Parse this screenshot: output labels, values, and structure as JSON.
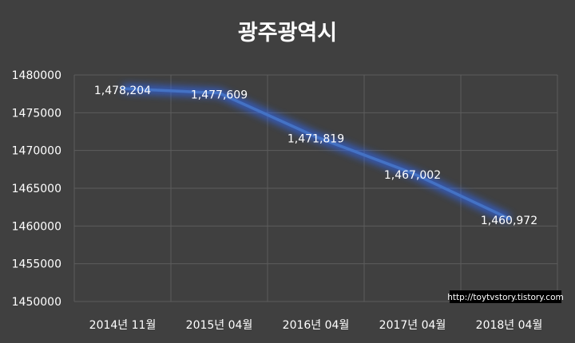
{
  "chart_data": {
    "type": "line",
    "title": "광주광역시",
    "categories": [
      "2014년 11월",
      "2015년 04월",
      "2016년 04월",
      "2017년 04월",
      "2018년 04월"
    ],
    "series": [
      {
        "values": [
          1478204,
          1477609,
          1471819,
          1467002,
          1460972
        ],
        "data_labels": [
          "1,478,204",
          "1,477,609",
          "1,471,819",
          "1,467,002",
          "1,460,972"
        ]
      }
    ],
    "y_ticks": [
      "1480000",
      "1475000",
      "1470000",
      "1465000",
      "1460000",
      "1455000",
      "1450000"
    ],
    "ylim": [
      1450000,
      1480000
    ],
    "grid": true,
    "xlabel": "",
    "ylabel": "",
    "line_color": "#4472C4",
    "glow_color": "#2E6BFF"
  },
  "watermark": "http://toytvstory.tistory.com"
}
